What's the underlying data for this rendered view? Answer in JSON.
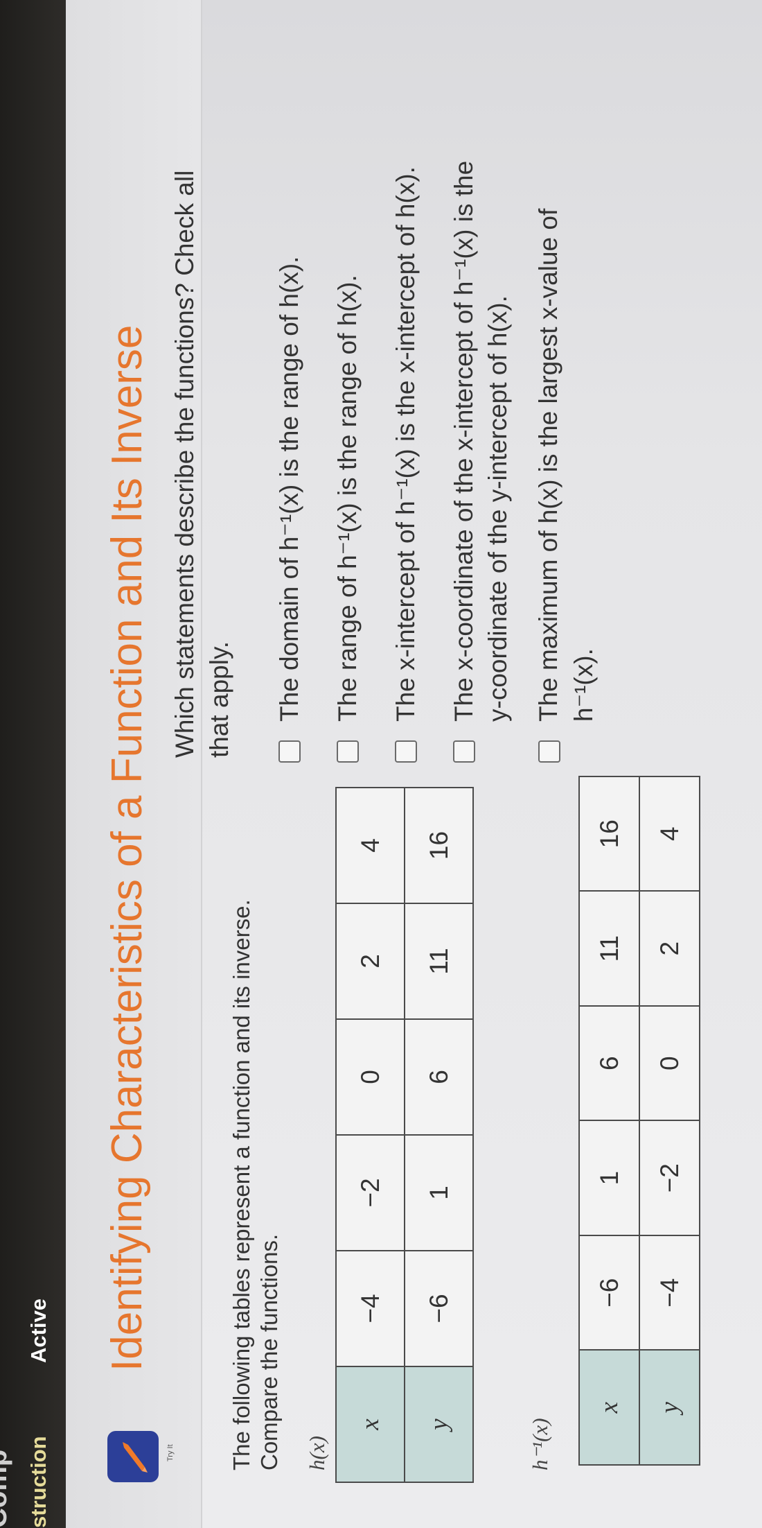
{
  "nav": {
    "cutoff_text": "Comp",
    "tabs": [
      {
        "label": "struction",
        "color": "#e6dc9a"
      },
      {
        "label": "Active",
        "color": "#ffffff"
      }
    ]
  },
  "header": {
    "icon": "pencil-badge-icon",
    "icon_bg": "#2c3f98",
    "icon_fg": "#f07a2a",
    "try_it": "Try It",
    "title": "Identifying Characteristics of a Function and Its Inverse",
    "title_color": "#e6762e"
  },
  "intro": {
    "line1": "The following tables represent a function and its inverse.",
    "line2": "Compare the functions."
  },
  "tables": [
    {
      "label": "h(x)",
      "rows": [
        {
          "header": "x",
          "values": [
            "−4",
            "−2",
            "0",
            "2",
            "4"
          ]
        },
        {
          "header": "y",
          "values": [
            "−6",
            "1",
            "6",
            "11",
            "16"
          ]
        }
      ]
    },
    {
      "label": "h⁻¹(x)",
      "rows": [
        {
          "header": "x",
          "values": [
            "−6",
            "1",
            "6",
            "11",
            "16"
          ]
        },
        {
          "header": "y",
          "values": [
            "−4",
            "−2",
            "0",
            "2",
            "4"
          ]
        }
      ]
    }
  ],
  "question": {
    "line1": "Which statements describe the functions? Check all",
    "line2": "that apply.",
    "options": [
      {
        "line1": "The domain of h⁻¹(x) is the range of h(x).",
        "line2": "",
        "checked": false
      },
      {
        "line1": "The range of h⁻¹(x) is the range of h(x).",
        "line2": "",
        "checked": false
      },
      {
        "line1": "The x-intercept of h⁻¹(x) is the x-intercept of h(x).",
        "line2": "",
        "checked": false
      },
      {
        "line1": "The x-coordinate of the x-intercept of h⁻¹(x) is the",
        "line2": "y-coordinate of the y-intercept of h(x).",
        "checked": false
      },
      {
        "line1": "The maximum of h(x) is the largest x-value of",
        "line2": "h⁻¹(x).",
        "checked": false
      }
    ]
  }
}
